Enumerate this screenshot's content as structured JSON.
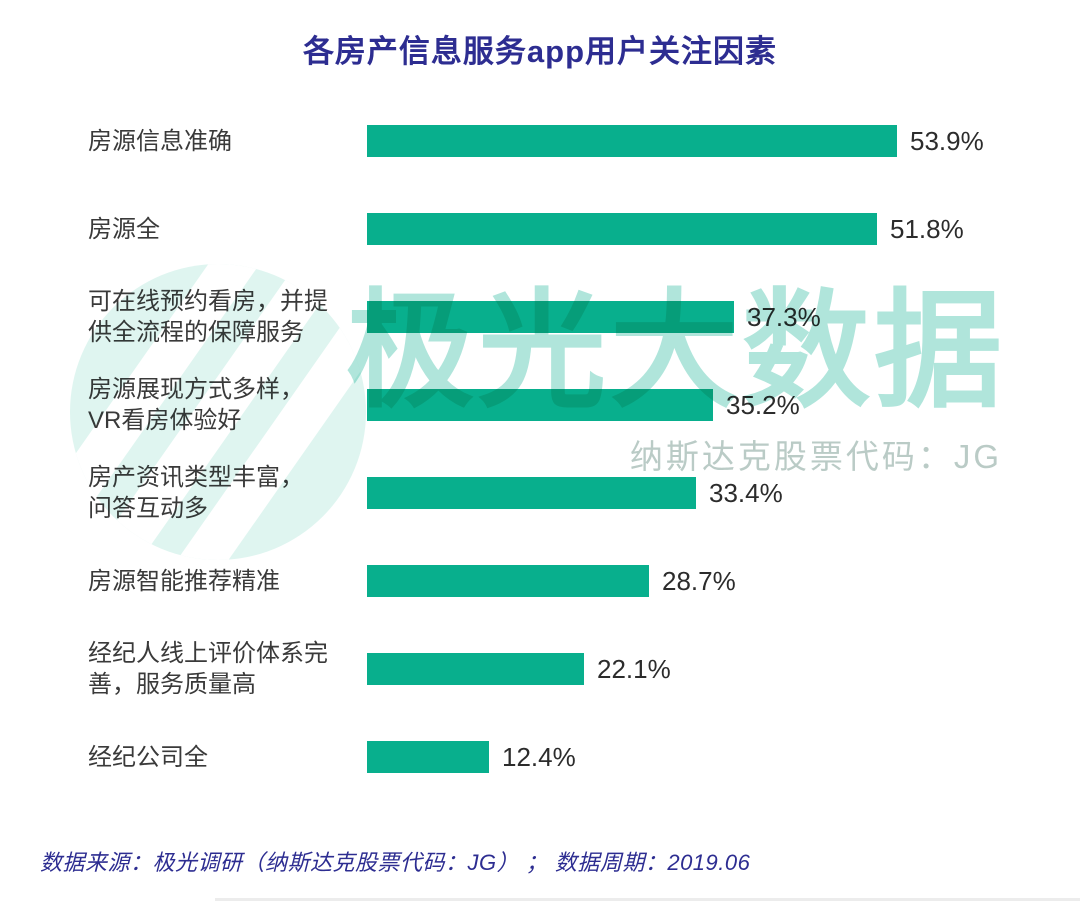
{
  "title": "各房产信息服务app用户关注因素",
  "footer": "数据来源：极光调研（纳斯达克股票代码：JG） ； 数据周期：2019.06",
  "watermark": {
    "brand": "极光大数据",
    "stock_code": "纳斯达克股票代码：JG"
  },
  "colors": {
    "bar": "#08af8d",
    "title_text": "#2d2d91",
    "label_text": "#3a3a3a",
    "value_text": "#2c2c2c",
    "watermark_green": "#0aae8e"
  },
  "rows": [
    {
      "line1": "房源信息准确",
      "line2": "",
      "value_label": "53.9%"
    },
    {
      "line1": "房源全",
      "line2": "",
      "value_label": "51.8%"
    },
    {
      "line1": "可在线预约看房，并提",
      "line2": "供全流程的保障服务",
      "value_label": "37.3%"
    },
    {
      "line1": "房源展现方式多样，",
      "line2": "VR看房体验好",
      "value_label": "35.2%"
    },
    {
      "line1": "房产资讯类型丰富，",
      "line2": "问答互动多",
      "value_label": "33.4%"
    },
    {
      "line1": "房源智能推荐精准",
      "line2": "",
      "value_label": "28.7%"
    },
    {
      "line1": "经纪人线上评价体系完",
      "line2": "善，服务质量高",
      "value_label": "22.1%"
    },
    {
      "line1": "经纪公司全",
      "line2": "",
      "value_label": "12.4%"
    }
  ],
  "chart_data": {
    "type": "bar",
    "orientation": "horizontal",
    "title": "各房产信息服务app用户关注因素",
    "categories": [
      "房源信息准确",
      "房源全",
      "可在线预约看房，并提供全流程的保障服务",
      "房源展现方式多样，VR看房体验好",
      "房产资讯类型丰富，问答互动多",
      "房源智能推荐精准",
      "经纪人线上评价体系完善，服务质量高",
      "经纪公司全"
    ],
    "values": [
      53.9,
      51.8,
      37.3,
      35.2,
      33.4,
      28.7,
      22.1,
      12.4
    ],
    "unit": "%",
    "xlabel": "",
    "ylabel": "",
    "xlim": [
      0,
      55
    ],
    "grid": false,
    "legend": false,
    "value_labels_shown": true,
    "source_note": "数据来源：极光调研（纳斯达克股票代码：JG）；数据周期：2019.06"
  }
}
